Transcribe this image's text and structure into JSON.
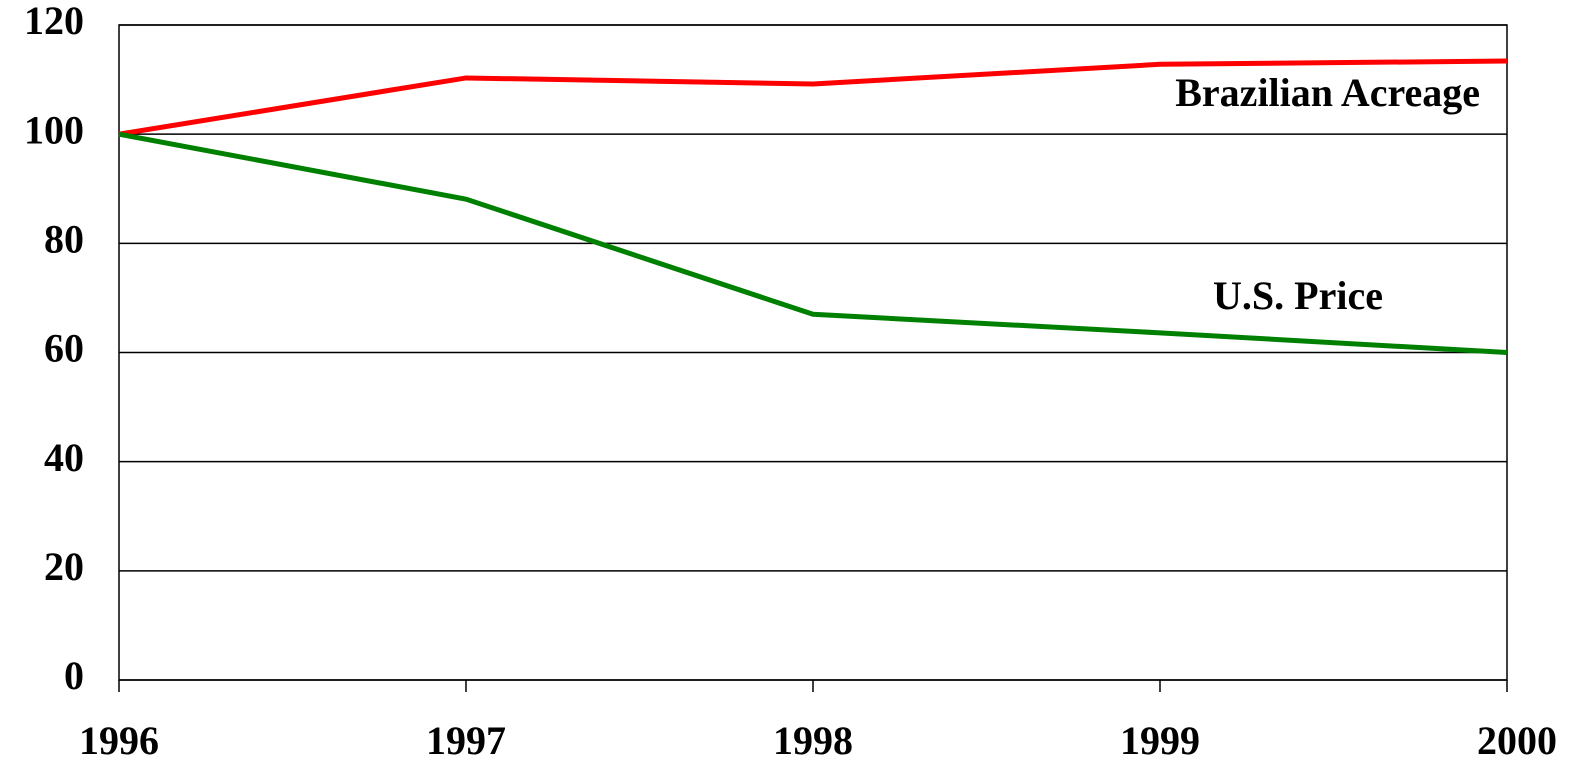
{
  "chart_data": {
    "type": "line",
    "x": [
      1996,
      1997,
      1998,
      1999,
      2000
    ],
    "series": [
      {
        "name": "Brazilian Acreage",
        "color": "#ff0000",
        "values": [
          100,
          110.3,
          109.2,
          112.8,
          113.4
        ]
      },
      {
        "name": "U.S. Price",
        "color": "#008000",
        "values": [
          100,
          88.1,
          67,
          63.6,
          60
        ]
      }
    ],
    "xlim": [
      1996,
      2000
    ],
    "xticks": [
      1996,
      1997,
      1998,
      1999,
      2000
    ],
    "ylim": [
      0,
      120
    ],
    "yticks": [
      0,
      20,
      40,
      60,
      80,
      100,
      120
    ],
    "grid": true
  }
}
